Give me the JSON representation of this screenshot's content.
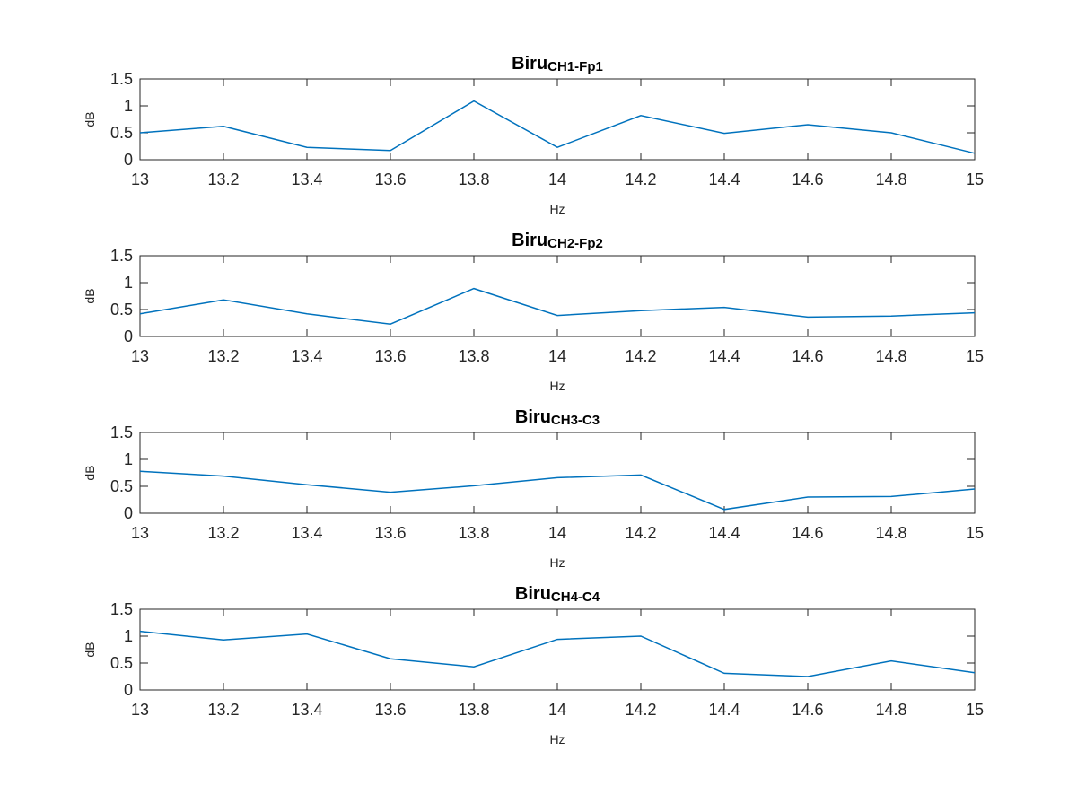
{
  "chart_data": [
    {
      "type": "line",
      "title": "Biru",
      "title_subscript": "CH1-Fp1",
      "xlabel": "Hz",
      "ylabel": "dB",
      "x": [
        13,
        13.2,
        13.4,
        13.6,
        13.8,
        14,
        14.2,
        14.4,
        14.6,
        14.8,
        15
      ],
      "xlim": [
        13,
        15
      ],
      "ylim": [
        0,
        1.5
      ],
      "xticks": [
        "13",
        "13.2",
        "13.4",
        "13.6",
        "13.8",
        "14",
        "14.2",
        "14.4",
        "14.6",
        "14.8",
        "15"
      ],
      "yticks": [
        "0",
        "0.5",
        "1",
        "1.5"
      ],
      "color": "#0072BD",
      "grid": false,
      "series": [
        {
          "values": [
            0.5,
            0.62,
            0.23,
            0.17,
            1.09,
            0.23,
            0.82,
            0.49,
            0.65,
            0.5,
            0.12
          ]
        }
      ]
    },
    {
      "type": "line",
      "title": "Biru",
      "title_subscript": "CH2-Fp2",
      "xlabel": "Hz",
      "ylabel": "dB",
      "x": [
        13,
        13.2,
        13.4,
        13.6,
        13.8,
        14,
        14.2,
        14.4,
        14.6,
        14.8,
        15
      ],
      "xlim": [
        13,
        15
      ],
      "ylim": [
        0,
        1.5
      ],
      "xticks": [
        "13",
        "13.2",
        "13.4",
        "13.6",
        "13.8",
        "14",
        "14.2",
        "14.4",
        "14.6",
        "14.8",
        "15"
      ],
      "yticks": [
        "0",
        "0.5",
        "1",
        "1.5"
      ],
      "color": "#0072BD",
      "grid": false,
      "series": [
        {
          "values": [
            0.42,
            0.68,
            0.42,
            0.23,
            0.89,
            0.39,
            0.48,
            0.54,
            0.36,
            0.38,
            0.44
          ]
        }
      ]
    },
    {
      "type": "line",
      "title": "Biru",
      "title_subscript": "CH3-C3",
      "xlabel": "Hz",
      "ylabel": "dB",
      "x": [
        13,
        13.2,
        13.4,
        13.6,
        13.8,
        14,
        14.2,
        14.4,
        14.6,
        14.8,
        15
      ],
      "xlim": [
        13,
        15
      ],
      "ylim": [
        0,
        1.5
      ],
      "xticks": [
        "13",
        "13.2",
        "13.4",
        "13.6",
        "13.8",
        "14",
        "14.2",
        "14.4",
        "14.6",
        "14.8",
        "15"
      ],
      "yticks": [
        "0",
        "0.5",
        "1",
        "1.5"
      ],
      "color": "#0072BD",
      "grid": false,
      "series": [
        {
          "values": [
            0.78,
            0.69,
            0.53,
            0.39,
            0.51,
            0.66,
            0.71,
            0.07,
            0.3,
            0.31,
            0.45
          ]
        }
      ]
    },
    {
      "type": "line",
      "title": "Biru",
      "title_subscript": "CH4-C4",
      "xlabel": "Hz",
      "ylabel": "dB",
      "x": [
        13,
        13.2,
        13.4,
        13.6,
        13.8,
        14,
        14.2,
        14.4,
        14.6,
        14.8,
        15
      ],
      "xlim": [
        13,
        15
      ],
      "ylim": [
        0,
        1.5
      ],
      "xticks": [
        "13",
        "13.2",
        "13.4",
        "13.6",
        "13.8",
        "14",
        "14.2",
        "14.4",
        "14.6",
        "14.8",
        "15"
      ],
      "yticks": [
        "0",
        "0.5",
        "1",
        "1.5"
      ],
      "color": "#0072BD",
      "grid": false,
      "series": [
        {
          "values": [
            1.09,
            0.93,
            1.04,
            0.58,
            0.43,
            0.94,
            1.0,
            0.31,
            0.25,
            0.54,
            0.32
          ]
        }
      ]
    }
  ]
}
